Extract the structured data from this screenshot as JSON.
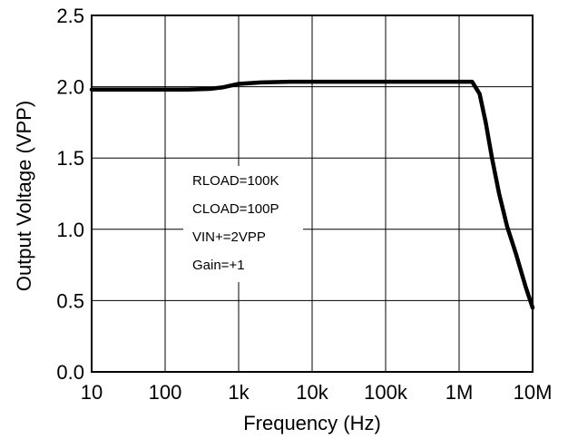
{
  "chart_data": {
    "type": "line",
    "xscale": "log",
    "xlim": [
      10,
      10000000
    ],
    "ylim": [
      0,
      2.5
    ],
    "grid": true,
    "xlabel": "Frequency (Hz)",
    "ylabel": "Output Voltage (VPP)",
    "x_ticks": [
      {
        "value": 10,
        "label": "10"
      },
      {
        "value": 100,
        "label": "100"
      },
      {
        "value": 1000,
        "label": "1k"
      },
      {
        "value": 10000,
        "label": "10k"
      },
      {
        "value": 100000,
        "label": "100k"
      },
      {
        "value": 1000000,
        "label": "1M"
      },
      {
        "value": 10000000,
        "label": "10M"
      }
    ],
    "y_ticks": [
      {
        "value": 0,
        "label": "0.0"
      },
      {
        "value": 0.5,
        "label": "0.5"
      },
      {
        "value": 1.0,
        "label": "1.0"
      },
      {
        "value": 1.5,
        "label": "1.5"
      },
      {
        "value": 2.0,
        "label": "2.0"
      },
      {
        "value": 2.5,
        "label": "2.5"
      }
    ],
    "annotations": [
      "RLOAD=100K",
      "CLOAD=100P",
      "VIN+=2VPP",
      "Gain=+1"
    ],
    "series": [
      {
        "x": [
          10,
          20,
          50,
          100,
          200,
          400,
          600,
          1000,
          2000,
          5000,
          10000,
          100000,
          1000000,
          1500000,
          1900000,
          2300000,
          2800000,
          3500000,
          4500000,
          6000000,
          8000000,
          10000000
        ],
        "y": [
          1.98,
          1.98,
          1.98,
          1.98,
          1.98,
          1.985,
          1.995,
          2.02,
          2.03,
          2.035,
          2.035,
          2.035,
          2.035,
          2.035,
          1.95,
          1.75,
          1.5,
          1.25,
          1.02,
          0.82,
          0.6,
          0.45
        ]
      }
    ]
  }
}
